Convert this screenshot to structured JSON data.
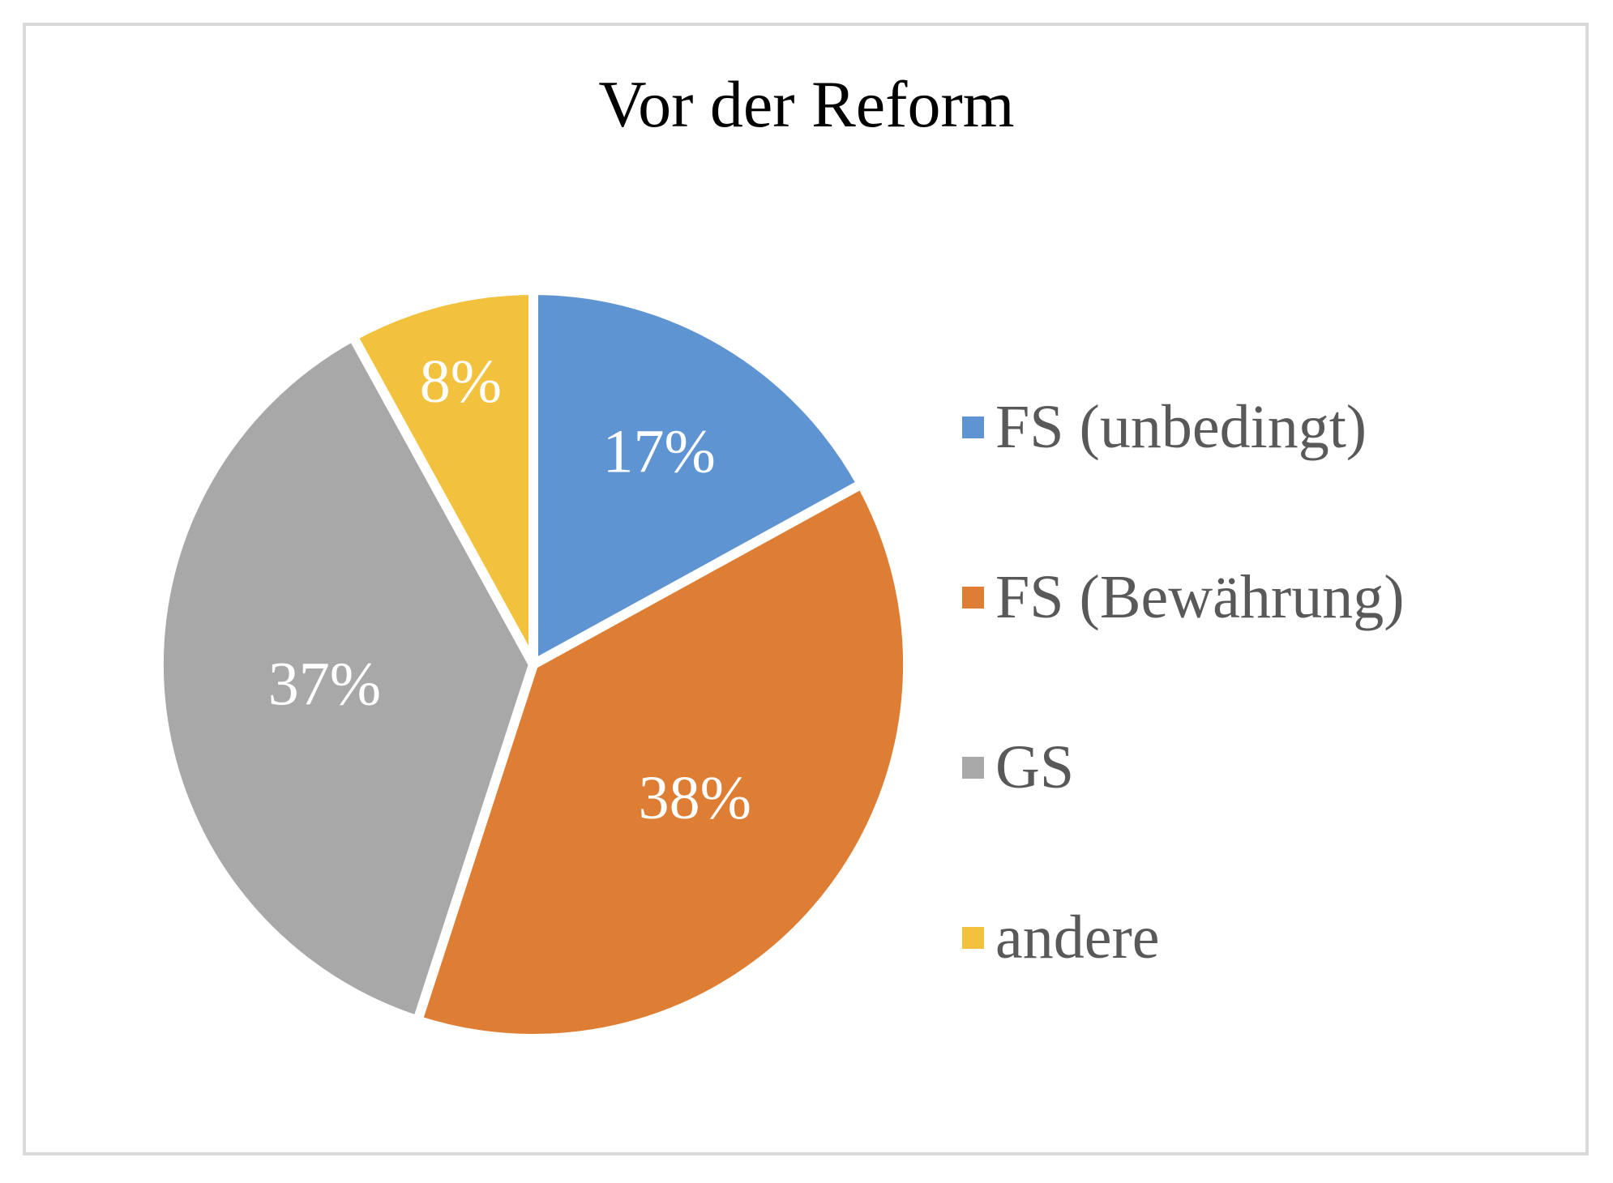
{
  "page": {
    "background": "#FFFFFF",
    "frame_border_color": "#D9D9D9"
  },
  "chart_data": {
    "type": "pie",
    "title": "Vor der Reform",
    "categories": [
      "FS (unbedingt)",
      "FS (Bewährung)",
      "GS",
      "andere"
    ],
    "values": [
      17,
      38,
      37,
      8
    ],
    "unit": "%",
    "data_labels": [
      "17%",
      "38%",
      "37%",
      "8%"
    ],
    "colors": [
      "#5F94D2",
      "#DE7E35",
      "#A8A8A8",
      "#F2C13D"
    ],
    "data_label_color": "#FFFFFF",
    "title_color": "#000000",
    "legend_text_color": "#595959",
    "legend_position": "right",
    "start_angle_deg": 0,
    "direction": "clockwise",
    "slice_border_color": "#FFFFFF"
  }
}
